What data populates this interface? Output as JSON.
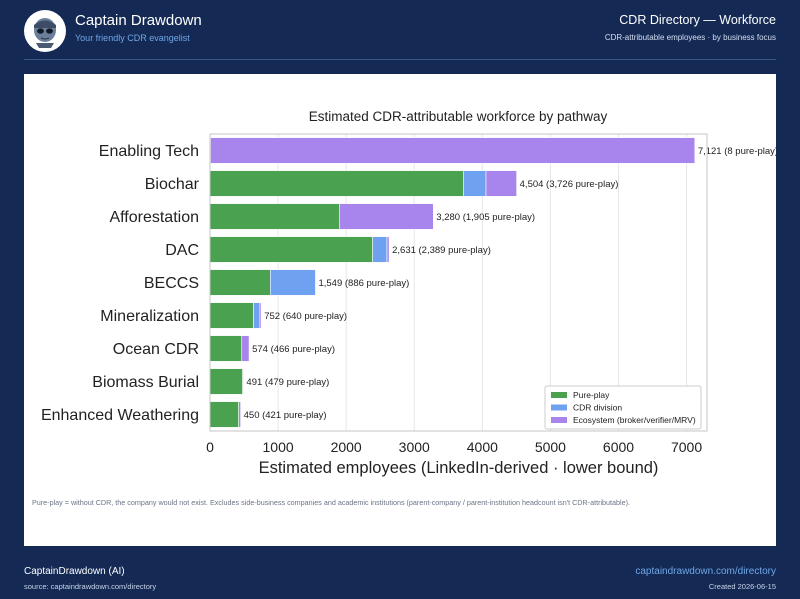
{
  "header": {
    "brand_title": "Captain Drawdown",
    "brand_subtitle": "Your friendly CDR evangelist",
    "page_title": "CDR Directory — Workforce",
    "page_subtitle": "CDR-attributable employees · by business focus"
  },
  "note": "Pure-play = without CDR, the company would not exist.  Excludes side-business companies and academic institutions (parent-company / parent-institution headcount isn't CDR-attributable).",
  "footer": {
    "left_title": "CaptainDrawdown (AI)",
    "left_source": "source: captaindrawdown.com/directory",
    "right_link": "captaindrawdown.com/directory",
    "right_created": "Created 2026-06-15"
  },
  "colors": {
    "background": "#142a55",
    "pure_play": "#4aa150",
    "cdr_division": "#6ea1ef",
    "ecosystem": "#a885ec"
  },
  "chart_data": {
    "type": "bar",
    "orientation": "horizontal",
    "stacked": true,
    "title": "Estimated CDR-attributable workforce by pathway",
    "xlabel": "Estimated employees (LinkedIn-derived · lower bound)",
    "xlim": [
      0,
      7300
    ],
    "xticks": [
      0,
      1000,
      2000,
      3000,
      4000,
      5000,
      6000,
      7000
    ],
    "grid": true,
    "legend_position": "lower-right",
    "categories": [
      "Enabling Tech",
      "Biochar",
      "Afforestation",
      "DAC",
      "BECCS",
      "Mineralization",
      "Ocean CDR",
      "Biomass Burial",
      "Enhanced Weathering"
    ],
    "series": [
      {
        "name": "Pure-play",
        "color": "#4aa150",
        "values": [
          8,
          3726,
          1905,
          2389,
          886,
          640,
          466,
          479,
          421
        ]
      },
      {
        "name": "CDR division",
        "color": "#6ea1ef",
        "values": [
          0,
          328,
          0,
          210,
          663,
          92,
          0,
          0,
          0
        ]
      },
      {
        "name": "Ecosystem (broker/verifier/MRV)",
        "color": "#a885ec",
        "values": [
          7113,
          450,
          1375,
          32,
          0,
          20,
          108,
          12,
          29
        ]
      }
    ],
    "bar_labels": [
      "7,121  (8 pure-play)",
      "4,504  (3,726 pure-play)",
      "3,280  (1,905 pure-play)",
      "2,631  (2,389 pure-play)",
      "1,549  (886 pure-play)",
      "752  (640 pure-play)",
      "574  (466 pure-play)",
      "491  (479 pure-play)",
      "450  (421 pure-play)"
    ]
  }
}
